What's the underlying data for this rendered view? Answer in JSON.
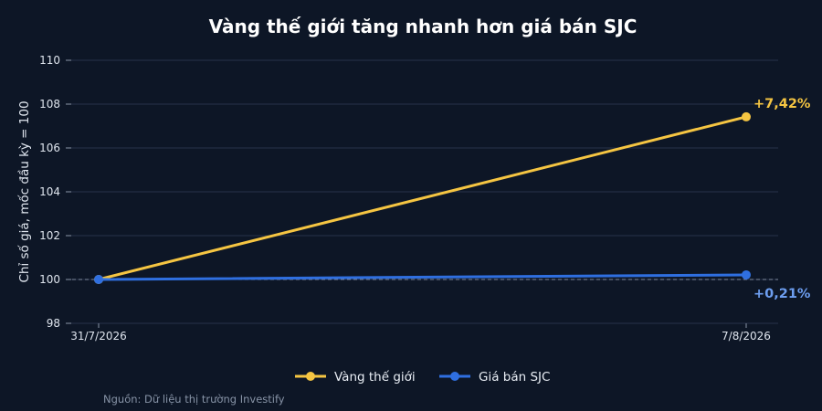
{
  "chart_data": {
    "type": "line",
    "title": "Vàng thế giới tăng nhanh hơn giá bán SJC",
    "ylabel": "Chỉ số giá, mốc đầu kỳ = 100",
    "xlabel": "",
    "categories": [
      "31/7/2026",
      "7/8/2026"
    ],
    "y_ticks": [
      98,
      100,
      102,
      104,
      106,
      108,
      110
    ],
    "ylim": [
      98,
      110
    ],
    "grid": true,
    "baseline": 100,
    "legend_position": "bottom-center",
    "series": [
      {
        "name": "Vàng thế giới",
        "values": [
          100,
          107.42
        ],
        "color": "#f5c542",
        "end_label": "+7,42%"
      },
      {
        "name": "Giá bán SJC",
        "values": [
          100,
          100.21
        ],
        "color": "#2f6fe0",
        "end_label": "+0,21%",
        "end_label_color": "#6d9ef0"
      }
    ],
    "source": "Nguồn: Dữ liệu thị trường Investify"
  }
}
